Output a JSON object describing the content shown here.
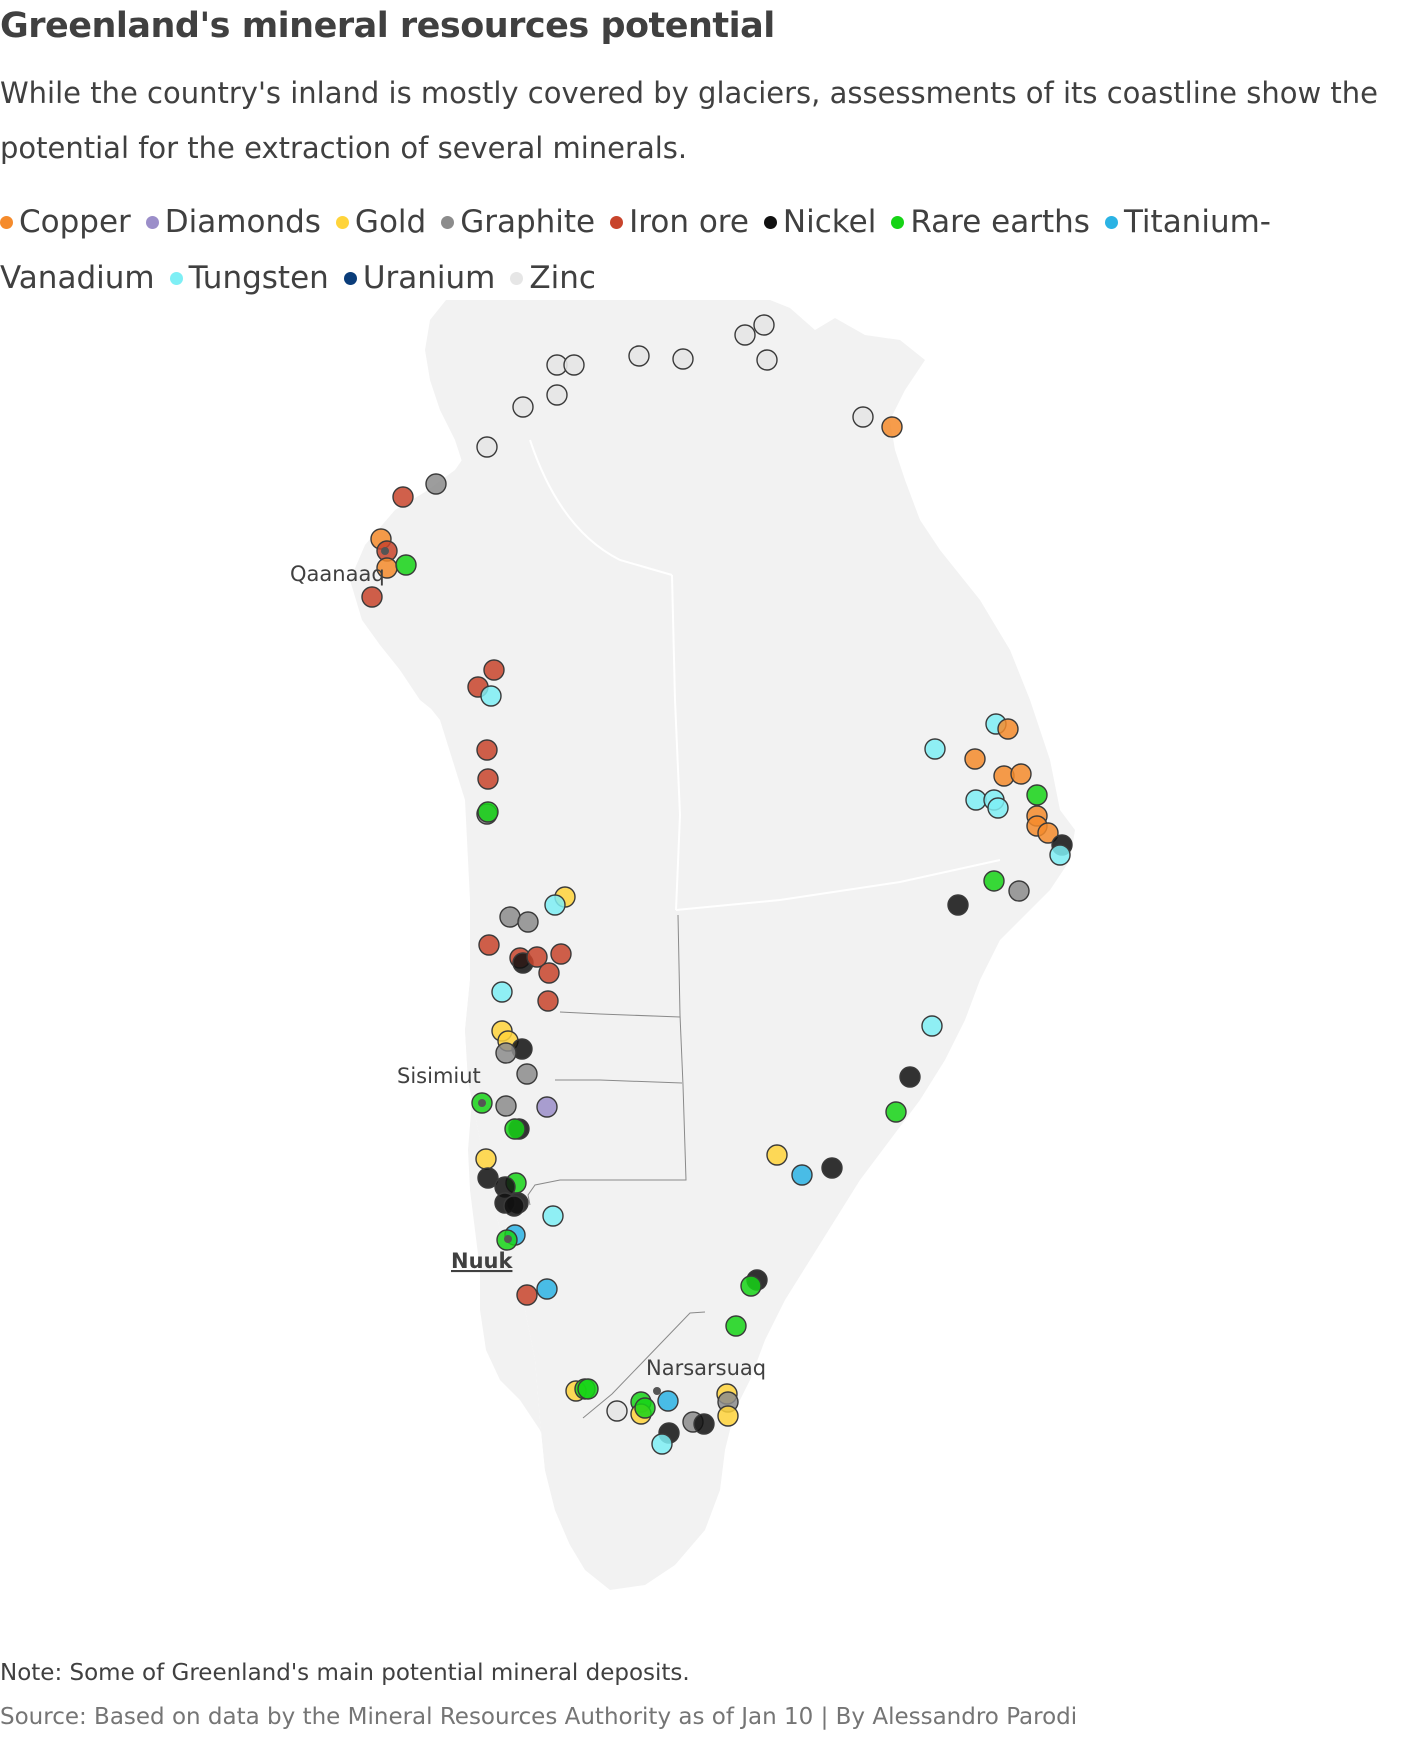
{
  "title": "Greenland's mineral resources potential",
  "subtitle": "While the country's inland is mostly covered by glaciers, assessments of its coastline show the potential for the extraction of several minerals.",
  "legend": [
    {
      "label": "Copper",
      "color": "#f58b2c"
    },
    {
      "label": "Diamonds",
      "color": "#9b8ec9"
    },
    {
      "label": "Gold",
      "color": "#ffd43b"
    },
    {
      "label": "Graphite",
      "color": "#8c8c8c"
    },
    {
      "label": "Iron ore",
      "color": "#c8442c"
    },
    {
      "label": "Nickel",
      "color": "#111111"
    },
    {
      "label": "Rare earths",
      "color": "#16d416"
    },
    {
      "label": "Titanium-Vanadium",
      "color": "#2bb3e4"
    },
    {
      "label": "Tungsten",
      "color": "#7eeff5"
    },
    {
      "label": "Uranium",
      "color": "#0a3d7a"
    },
    {
      "label": "Zinc",
      "color": "#e6e6e6"
    }
  ],
  "cities": [
    {
      "name": "Qaanaaq"
    },
    {
      "name": "Sisimiut"
    },
    {
      "name": "Nuuk",
      "capital": true
    },
    {
      "name": "Narsarsuaq"
    }
  ],
  "note": "Note: Some of Greenland's main potential mineral deposits.",
  "source": "Source: Based on data by the Mineral Resources Authority as of Jan 10 | By Alessandro Parodi"
}
